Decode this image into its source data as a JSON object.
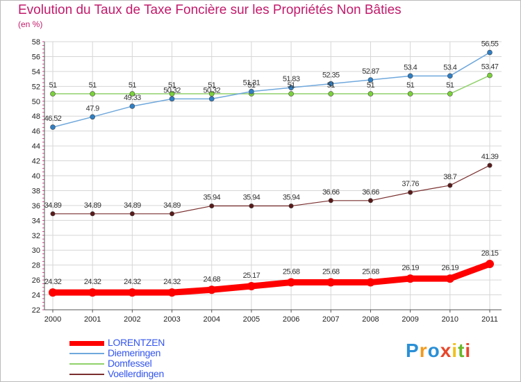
{
  "title": "Evolution du Taux de Taxe Foncière sur les Propriétés Non Bâties",
  "unit_label": "(en %)",
  "logo": {
    "text": "Proxiti",
    "colors": [
      "#2a8fd6",
      "#f29a1c",
      "#2a8fd6",
      "#e8462a",
      "#f2c01c",
      "#6ab82a",
      "#e8462a"
    ]
  },
  "chart_data": {
    "type": "line",
    "title": "Evolution du Taux de Taxe Foncière sur les Propriétés Non Bâties",
    "ylabel": "(en %)",
    "xlabel": "",
    "ylim": [
      22,
      58
    ],
    "y_ticks": [
      22,
      24,
      26,
      28,
      30,
      32,
      34,
      36,
      38,
      40,
      42,
      44,
      46,
      48,
      50,
      52,
      54,
      56,
      58
    ],
    "categories": [
      "2000",
      "2001",
      "2002",
      "2003",
      "2004",
      "2005",
      "2006",
      "2007",
      "2008",
      "2009",
      "2010",
      "2011"
    ],
    "grid": true,
    "legend_position": "bottom-left",
    "series": [
      {
        "name": "LORENTZEN",
        "color": "#ff0000",
        "values": [
          24.32,
          24.32,
          24.32,
          24.32,
          24.68,
          25.17,
          25.68,
          25.68,
          25.68,
          26.19,
          26.19,
          28.15
        ],
        "labels": [
          "24.32",
          "24.32",
          "24.32",
          "24.32",
          "24.68",
          "25.17",
          "25.68",
          "25.68",
          "25.68",
          "26.19",
          "26.19",
          "28.15"
        ]
      },
      {
        "name": "Diemeringen",
        "color": "#6fa8dc",
        "values": [
          46.52,
          47.9,
          49.33,
          50.32,
          50.32,
          51.31,
          51.83,
          52.35,
          52.87,
          53.4,
          53.4,
          56.55
        ],
        "labels": [
          "46.52",
          "47.9",
          "49.33",
          "50.32",
          "50.32",
          "51.31",
          "51.83",
          "52.35",
          "52.87",
          "53.4",
          "53.4",
          "56.55"
        ]
      },
      {
        "name": "Domfessel",
        "color": "#8fd16a",
        "values": [
          51,
          51,
          51,
          51,
          51,
          51,
          51,
          51,
          51,
          51,
          51,
          53.47
        ],
        "labels": [
          "51",
          "51",
          "51",
          "51",
          "51",
          "51",
          "51",
          "51",
          "51",
          "51",
          "51",
          "53.47"
        ]
      },
      {
        "name": "Voellerdingen",
        "color": "#7a2e2e",
        "values": [
          34.89,
          34.89,
          34.89,
          34.89,
          35.94,
          35.94,
          35.94,
          36.66,
          36.66,
          37.76,
          38.7,
          41.39
        ],
        "labels": [
          "34.89",
          "34.89",
          "34.89",
          "34.89",
          "35.94",
          "35.94",
          "35.94",
          "36.66",
          "36.66",
          "37.76",
          "38.7",
          "41.39"
        ]
      }
    ]
  }
}
